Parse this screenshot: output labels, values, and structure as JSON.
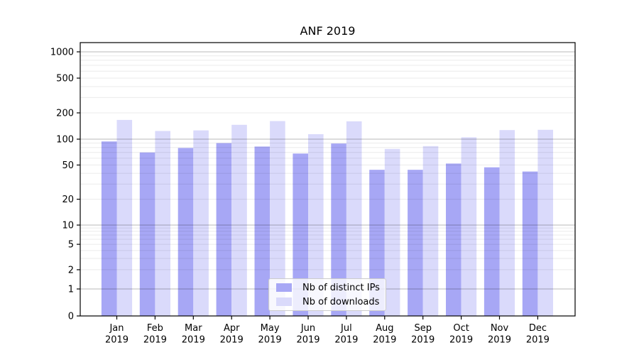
{
  "chart_data": {
    "type": "bar",
    "title": "ANF 2019",
    "categories": [
      "Jan",
      "Feb",
      "Mar",
      "Apr",
      "May",
      "Jun",
      "Jul",
      "Aug",
      "Sep",
      "Oct",
      "Nov",
      "Dec"
    ],
    "year_label": "2019",
    "series": [
      {
        "name": "Nb of distinct IPs",
        "color": "#a7a7f5",
        "values": [
          94,
          70,
          79,
          90,
          82,
          68,
          89,
          44,
          44,
          52,
          47,
          42
        ]
      },
      {
        "name": "Nb of downloads",
        "color": "#dadafb",
        "values": [
          166,
          124,
          126,
          146,
          161,
          114,
          160,
          77,
          83,
          105,
          127,
          128
        ]
      }
    ],
    "y_axis": {
      "scale": "log-with-zero",
      "tick_values": [
        0,
        1,
        2,
        5,
        10,
        20,
        50,
        100,
        200,
        500,
        1000
      ],
      "major_gridline_values": [
        1,
        10,
        100,
        1000
      ],
      "ylim": [
        0,
        1275
      ]
    },
    "x_axis": {
      "label": ""
    },
    "legend": {
      "position": "lower center"
    },
    "grid": true
  },
  "colors": {
    "bar_distinct_ips": "#a7a7f5",
    "bar_downloads": "#dadafb",
    "major_grid": "rgba(0,0,0,0.28)",
    "minor_grid": "rgba(0,0,0,0.08)",
    "axis_frame": "#000000",
    "text": "#000000",
    "legend_border": "#cccccc",
    "legend_background": "rgba(255,255,255,0.8)"
  }
}
